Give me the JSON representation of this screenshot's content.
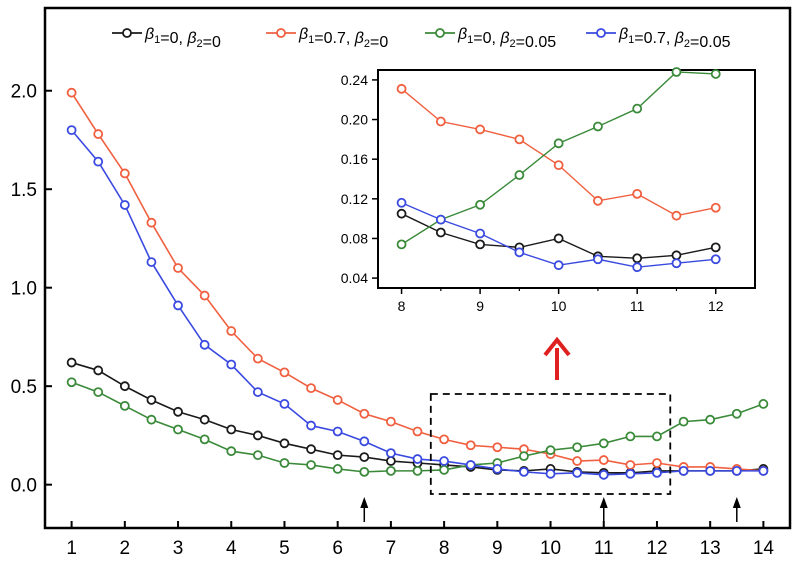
{
  "chart_data": [
    {
      "type": "line",
      "title": "",
      "xlabel": "",
      "ylabel": "",
      "xlim": [
        0.5,
        14.5
      ],
      "ylim": [
        -0.22,
        2.42
      ],
      "xticks": [
        1,
        2,
        3,
        4,
        5,
        6,
        7,
        8,
        9,
        10,
        11,
        12,
        13,
        14
      ],
      "yticks": [
        0.0,
        0.5,
        1.0,
        1.5,
        2.0
      ],
      "ytick_labels": [
        "0.0",
        "0.5",
        "1.0",
        "1.5",
        "2.0"
      ],
      "grid": false,
      "legend_position": "top",
      "x": [
        1,
        1.5,
        2,
        2.5,
        3,
        3.5,
        4,
        4.5,
        5,
        5.5,
        6,
        6.5,
        7,
        7.5,
        8,
        8.5,
        9,
        9.5,
        10,
        10.5,
        11,
        11.5,
        12,
        12.5,
        13,
        13.5,
        14
      ],
      "series": [
        {
          "legend_parts": [
            "β",
            "1",
            "=0, ",
            "β",
            "2",
            "=0"
          ],
          "color": "#1a1a1a",
          "values": [
            0.62,
            0.58,
            0.5,
            0.43,
            0.37,
            0.33,
            0.28,
            0.25,
            0.21,
            0.18,
            0.15,
            0.14,
            0.12,
            0.11,
            0.1,
            0.09,
            0.075,
            0.07,
            0.08,
            0.065,
            0.06,
            0.06,
            0.07,
            0.07,
            0.07,
            0.07,
            0.08
          ]
        },
        {
          "legend_parts": [
            "β",
            "1",
            "=0.7, ",
            "β",
            "2",
            "=0"
          ],
          "color": "#f06040",
          "values": [
            1.99,
            1.78,
            1.58,
            1.33,
            1.1,
            0.96,
            0.78,
            0.64,
            0.57,
            0.49,
            0.43,
            0.36,
            0.32,
            0.27,
            0.23,
            0.2,
            0.19,
            0.18,
            0.155,
            0.12,
            0.125,
            0.1,
            0.11,
            0.09,
            0.09,
            0.08,
            0.07
          ]
        },
        {
          "legend_parts": [
            "β",
            "1",
            "=0, ",
            "β",
            "2",
            "=0.05"
          ],
          "color": "#3a8a3a",
          "values": [
            0.52,
            0.47,
            0.4,
            0.33,
            0.28,
            0.23,
            0.17,
            0.15,
            0.11,
            0.1,
            0.08,
            0.065,
            0.07,
            0.07,
            0.075,
            0.1,
            0.11,
            0.145,
            0.175,
            0.19,
            0.21,
            0.245,
            0.245,
            0.32,
            0.33,
            0.36,
            0.41
          ]
        },
        {
          "legend_parts": [
            "β",
            "1",
            "=0.7, ",
            "β",
            "2",
            "=0.05"
          ],
          "color": "#3a4ae0",
          "values": [
            1.8,
            1.64,
            1.42,
            1.13,
            0.91,
            0.71,
            0.61,
            0.47,
            0.41,
            0.3,
            0.27,
            0.22,
            0.16,
            0.13,
            0.12,
            0.1,
            0.08,
            0.065,
            0.055,
            0.06,
            0.05,
            0.055,
            0.06,
            0.07,
            0.07,
            0.07,
            0.07
          ]
        }
      ],
      "arrows_at_x": [
        6.5,
        11,
        13.5
      ]
    },
    {
      "type": "line",
      "title": "",
      "xlim": [
        7.7,
        12.5
      ],
      "ylim": [
        0.03,
        0.25
      ],
      "xticks": [
        8,
        9,
        10,
        11,
        12
      ],
      "yticks": [
        0.04,
        0.08,
        0.12,
        0.16,
        0.2,
        0.24
      ],
      "ytick_labels": [
        "0.04",
        "0.08",
        "0.12",
        "0.16",
        "0.20",
        "0.24"
      ],
      "grid": false,
      "x": [
        8,
        8.5,
        9,
        9.5,
        10,
        10.5,
        11,
        11.5,
        12
      ],
      "series": [
        {
          "color": "#1a1a1a",
          "values": [
            0.105,
            0.086,
            0.074,
            0.071,
            0.08,
            0.062,
            0.06,
            0.063,
            0.071
          ]
        },
        {
          "color": "#f06040",
          "values": [
            0.231,
            0.198,
            0.19,
            0.18,
            0.154,
            0.118,
            0.125,
            0.103,
            0.111
          ]
        },
        {
          "color": "#3a8a3a",
          "values": [
            0.074,
            0.099,
            0.114,
            0.144,
            0.176,
            0.193,
            0.211,
            0.248,
            0.246
          ]
        },
        {
          "color": "#3a4ae0",
          "values": [
            0.116,
            0.099,
            0.085,
            0.066,
            0.053,
            0.059,
            0.051,
            0.055,
            0.059
          ]
        }
      ]
    }
  ],
  "colors": {
    "zoom_arrow": "#e02020",
    "axes": "#000000"
  }
}
